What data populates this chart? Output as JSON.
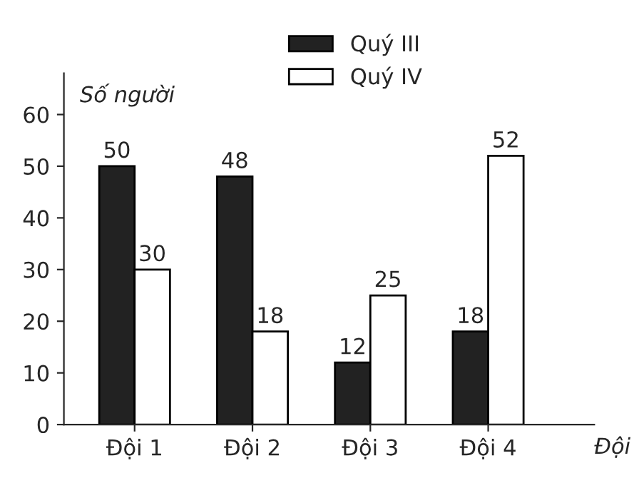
{
  "chart_data": {
    "type": "bar",
    "ylabel": "Số người",
    "xlabel": "Đội",
    "categories": [
      "Đội 1",
      "Đội 2",
      "Đội 3",
      "Đội 4"
    ],
    "series": [
      {
        "name": "Quý III",
        "color": "#222222",
        "values": [
          50,
          48,
          12,
          18
        ]
      },
      {
        "name": "Quý IV",
        "color": "#ffffff",
        "values": [
          30,
          18,
          25,
          52
        ]
      }
    ],
    "ylim": [
      0,
      68
    ],
    "yticks": [
      0,
      10,
      20,
      30,
      40,
      50,
      60
    ],
    "grid": false,
    "legend": "top",
    "data_labels": true
  }
}
